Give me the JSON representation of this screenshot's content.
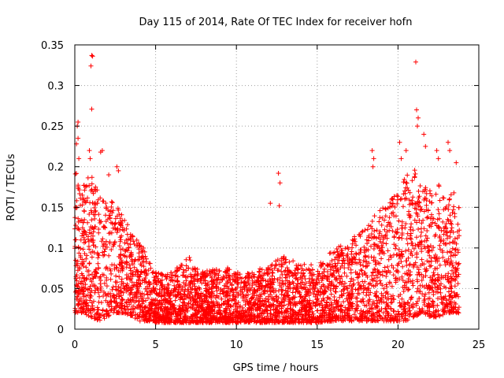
{
  "chart_data": {
    "type": "scatter",
    "title": "Day 115 of 2014, Rate Of TEC Index for receiver hofn",
    "xlabel": "GPS time / hours",
    "ylabel": "ROTI / TECUs",
    "xlim": [
      0,
      25
    ],
    "ylim": [
      0,
      0.35
    ],
    "xticks": [
      "0",
      "5",
      "10",
      "15",
      "20",
      "25"
    ],
    "yticks": [
      "0",
      "0.05",
      "0.1",
      "0.15",
      "0.2",
      "0.25",
      "0.3",
      "0.35"
    ],
    "grid": true,
    "marker": "plus",
    "color": "#ff0000",
    "envelope": {
      "hours": [
        0,
        0.5,
        1,
        1.5,
        2,
        2.5,
        3,
        3.5,
        4,
        4.5,
        5,
        6,
        7,
        8,
        9,
        10,
        11,
        12,
        13,
        14,
        15,
        16,
        17,
        18,
        19,
        20,
        20.5,
        21,
        21.5,
        22,
        22.5,
        23,
        23.5,
        23.8
      ],
      "upper": [
        0.2,
        0.18,
        0.19,
        0.17,
        0.16,
        0.16,
        0.14,
        0.12,
        0.11,
        0.09,
        0.07,
        0.07,
        0.09,
        0.07,
        0.08,
        0.07,
        0.07,
        0.08,
        0.09,
        0.08,
        0.08,
        0.1,
        0.11,
        0.13,
        0.15,
        0.17,
        0.19,
        0.2,
        0.18,
        0.17,
        0.18,
        0.16,
        0.17,
        0.15
      ],
      "lower": [
        0.02,
        0.02,
        0.015,
        0.01,
        0.015,
        0.02,
        0.02,
        0.015,
        0.01,
        0.01,
        0.008,
        0.008,
        0.008,
        0.008,
        0.008,
        0.008,
        0.008,
        0.008,
        0.008,
        0.008,
        0.008,
        0.01,
        0.01,
        0.01,
        0.01,
        0.01,
        0.01,
        0.015,
        0.02,
        0.015,
        0.015,
        0.02,
        0.02,
        0.02
      ]
    },
    "outliers": [
      [
        0.1,
        0.228
      ],
      [
        0.15,
        0.25
      ],
      [
        0.2,
        0.255
      ],
      [
        0.2,
        0.235
      ],
      [
        0.25,
        0.21
      ],
      [
        1.0,
        0.324
      ],
      [
        1.05,
        0.337
      ],
      [
        1.1,
        0.336
      ],
      [
        1.05,
        0.271
      ],
      [
        0.9,
        0.22
      ],
      [
        0.95,
        0.21
      ],
      [
        1.6,
        0.218
      ],
      [
        1.7,
        0.22
      ],
      [
        2.6,
        0.2
      ],
      [
        2.7,
        0.195
      ],
      [
        2.1,
        0.19
      ],
      [
        12.6,
        0.192
      ],
      [
        12.7,
        0.18
      ],
      [
        12.65,
        0.152
      ],
      [
        12.1,
        0.155
      ],
      [
        18.4,
        0.22
      ],
      [
        18.5,
        0.21
      ],
      [
        18.45,
        0.2
      ],
      [
        20.1,
        0.23
      ],
      [
        20.2,
        0.21
      ],
      [
        20.5,
        0.22
      ],
      [
        21.1,
        0.329
      ],
      [
        21.15,
        0.27
      ],
      [
        21.25,
        0.26
      ],
      [
        21.2,
        0.25
      ],
      [
        21.6,
        0.24
      ],
      [
        21.7,
        0.225
      ],
      [
        22.4,
        0.22
      ],
      [
        22.5,
        0.21
      ],
      [
        23.1,
        0.23
      ],
      [
        23.2,
        0.22
      ],
      [
        23.6,
        0.205
      ]
    ]
  }
}
